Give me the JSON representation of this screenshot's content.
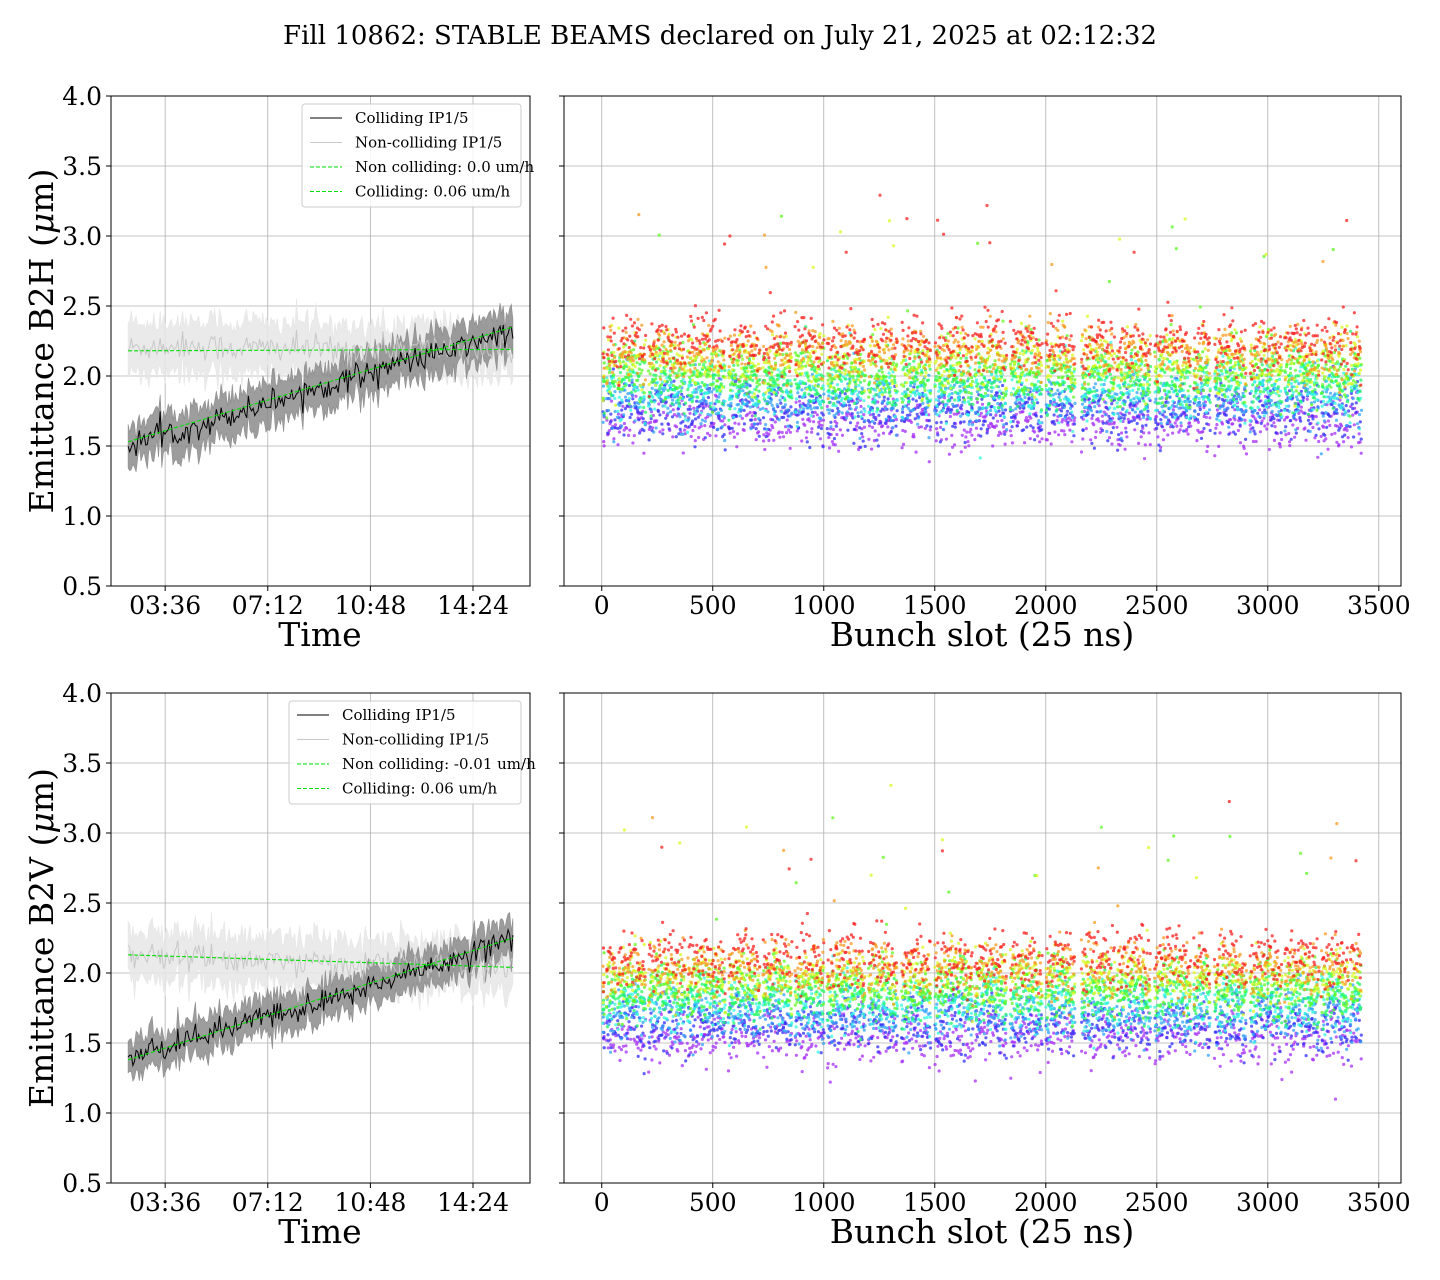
{
  "figure": {
    "suptitle": "Fill 10862: STABLE BEAMS declared on July 21, 2025 at 02:12:32"
  },
  "colors": {
    "colliding": "#000000",
    "colliding_band": "#8c8c8c",
    "non_colliding": "#c8c8c8",
    "non_colliding_band": "#e6e6e6",
    "fit": "#00e000",
    "grid": "#b0b0b0"
  },
  "chart_data": [
    {
      "type": "line",
      "ylabel": "Emittance B2H ($\\mu$m)",
      "xlabel": "Time",
      "ylim": [
        0.5,
        4.0
      ],
      "yticks": [
        "0.5",
        "1.0",
        "1.5",
        "2.0",
        "2.5",
        "3.0",
        "3.5",
        "4.0"
      ],
      "x_unit": "hours",
      "xlim": [
        1.7,
        16.4
      ],
      "xtick_values": [
        3.6,
        7.2,
        10.8,
        14.4
      ],
      "xticks": [
        "03:36",
        "07:12",
        "10:48",
        "14:24"
      ],
      "grid": true,
      "legend_placement": "upper-right",
      "series": [
        {
          "name": "Colliding IP1/5",
          "style": "solid-black-with-band",
          "x": [
            2.3,
            3.0,
            4.0,
            5.0,
            6.0,
            7.0,
            8.0,
            9.0,
            10.0,
            11.0,
            12.0,
            13.0,
            14.0,
            15.0,
            15.8
          ],
          "values": [
            1.5,
            1.56,
            1.6,
            1.66,
            1.73,
            1.8,
            1.86,
            1.92,
            1.98,
            2.05,
            2.1,
            2.15,
            2.2,
            2.28,
            2.3
          ],
          "band": 0.15
        },
        {
          "name": "Non-colliding IP1/5",
          "style": "solid-lightgray-with-band",
          "x": [
            2.3,
            4.0,
            6.0,
            8.0,
            10.0,
            12.0,
            14.0,
            15.8
          ],
          "values": [
            2.2,
            2.22,
            2.2,
            2.2,
            2.18,
            2.2,
            2.19,
            2.18
          ],
          "band": 0.18
        },
        {
          "name": "Non colliding: 0.0 um/h",
          "style": "dashed-green",
          "x": [
            2.3,
            15.8
          ],
          "values": [
            2.18,
            2.19
          ]
        },
        {
          "name": "Colliding: 0.06 um/h",
          "style": "dashed-green",
          "x": [
            2.3,
            15.8
          ],
          "values": [
            1.53,
            2.35
          ]
        }
      ]
    },
    {
      "type": "scatter",
      "xlabel": "Bunch slot (25 ns)",
      "ylim": [
        0.5,
        4.0
      ],
      "xlim": [
        -170,
        3600
      ],
      "xticks": [
        0,
        500,
        1000,
        1500,
        2000,
        2500,
        3000,
        3500
      ],
      "grid": true,
      "color_by": "time (rainbow: early = violet, late = red)",
      "trains": [
        [
          20,
          60
        ],
        [
          70,
          195
        ],
        [
          210,
          375
        ],
        [
          385,
          555
        ],
        [
          570,
          710
        ],
        [
          725,
          855
        ],
        [
          870,
          1000
        ],
        [
          1015,
          1185
        ],
        [
          1200,
          1330
        ],
        [
          1350,
          1480
        ],
        [
          1500,
          1670
        ],
        [
          1680,
          1820
        ],
        [
          1840,
          1980
        ],
        [
          2000,
          2130
        ],
        [
          2160,
          2310
        ],
        [
          2320,
          2470
        ],
        [
          2490,
          2650
        ],
        [
          2665,
          2740
        ],
        [
          2760,
          2900
        ],
        [
          2920,
          3060
        ],
        [
          3075,
          3230
        ],
        [
          3240,
          3360
        ],
        [
          3370,
          3420
        ]
      ],
      "initial_mean": 1.62,
      "final_mean": 2.18,
      "spread": 0.1
    },
    {
      "type": "line",
      "ylabel": "Emittance B2V ($\\mu$m)",
      "xlabel": "Time",
      "ylim": [
        0.5,
        4.0
      ],
      "yticks": [
        "0.5",
        "1.0",
        "1.5",
        "2.0",
        "2.5",
        "3.0",
        "3.5",
        "4.0"
      ],
      "x_unit": "hours",
      "xlim": [
        1.7,
        16.4
      ],
      "xtick_values": [
        3.6,
        7.2,
        10.8,
        14.4
      ],
      "xticks": [
        "03:36",
        "07:12",
        "10:48",
        "14:24"
      ],
      "grid": true,
      "legend_placement": "upper-right",
      "series": [
        {
          "name": "Colliding IP1/5",
          "style": "solid-black-with-band",
          "x": [
            2.3,
            3.0,
            4.0,
            5.0,
            6.0,
            7.0,
            8.0,
            9.0,
            10.0,
            11.0,
            12.0,
            13.0,
            14.0,
            15.0,
            15.8
          ],
          "values": [
            1.4,
            1.43,
            1.5,
            1.56,
            1.62,
            1.68,
            1.72,
            1.78,
            1.85,
            1.92,
            1.98,
            2.05,
            2.12,
            2.2,
            2.25
          ],
          "band": 0.13
        },
        {
          "name": "Non-colliding IP1/5",
          "style": "solid-lightgray-with-band",
          "x": [
            2.3,
            4.0,
            6.0,
            8.0,
            10.0,
            12.0,
            14.0,
            15.8
          ],
          "values": [
            2.12,
            2.12,
            2.1,
            2.08,
            2.06,
            2.06,
            2.05,
            2.04
          ],
          "band": 0.18
        },
        {
          "name": "Non colliding: -0.01 um/h",
          "style": "dashed-green",
          "x": [
            2.3,
            15.8
          ],
          "values": [
            2.13,
            2.04
          ]
        },
        {
          "name": "Colliding: 0.06 um/h",
          "style": "dashed-green",
          "x": [
            2.3,
            15.8
          ],
          "values": [
            1.38,
            2.25
          ]
        }
      ]
    },
    {
      "type": "scatter",
      "xlabel": "Bunch slot (25 ns)",
      "ylim": [
        0.5,
        4.0
      ],
      "xlim": [
        -170,
        3600
      ],
      "xticks": [
        0,
        500,
        1000,
        1500,
        2000,
        2500,
        3000,
        3500
      ],
      "grid": true,
      "color_by": "time (rainbow: early = violet, late = red)",
      "trains": [
        [
          20,
          60
        ],
        [
          70,
          195
        ],
        [
          210,
          375
        ],
        [
          385,
          555
        ],
        [
          570,
          710
        ],
        [
          725,
          855
        ],
        [
          870,
          1000
        ],
        [
          1015,
          1185
        ],
        [
          1200,
          1330
        ],
        [
          1350,
          1480
        ],
        [
          1500,
          1670
        ],
        [
          1680,
          1820
        ],
        [
          1840,
          1980
        ],
        [
          2000,
          2130
        ],
        [
          2160,
          2310
        ],
        [
          2320,
          2470
        ],
        [
          2490,
          2650
        ],
        [
          2665,
          2740
        ],
        [
          2760,
          2900
        ],
        [
          2920,
          3060
        ],
        [
          3075,
          3230
        ],
        [
          3240,
          3360
        ],
        [
          3370,
          3420
        ]
      ],
      "initial_mean": 1.5,
      "final_mean": 2.05,
      "spread": 0.1
    }
  ]
}
